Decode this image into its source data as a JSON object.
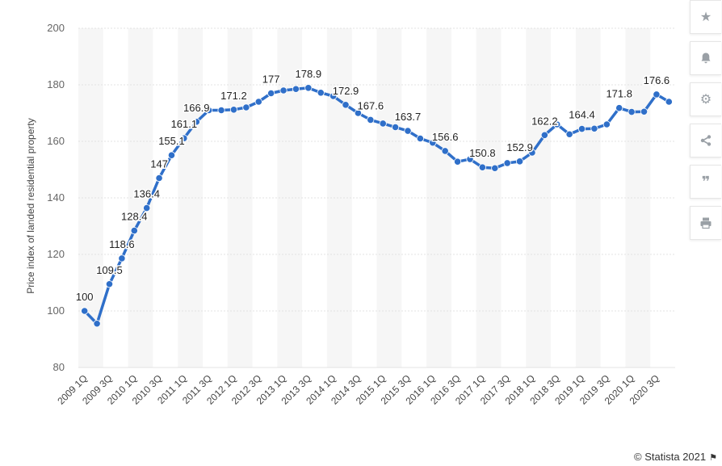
{
  "chart_data": {
    "type": "line",
    "ylabel": "Price index of landed residential property",
    "ylim": [
      80,
      200
    ],
    "yticks": [
      80,
      100,
      120,
      140,
      160,
      180,
      200
    ],
    "x": [
      "2009 1Q",
      "2009 2Q",
      "2009 3Q",
      "2009 4Q",
      "2010 1Q",
      "2010 2Q",
      "2010 3Q",
      "2010 4Q",
      "2011 1Q",
      "2011 2Q",
      "2011 3Q",
      "2011 4Q",
      "2012 1Q",
      "2012 2Q",
      "2012 3Q",
      "2012 4Q",
      "2013 1Q",
      "2013 2Q",
      "2013 3Q",
      "2013 4Q",
      "2014 1Q",
      "2014 2Q",
      "2014 3Q",
      "2014 4Q",
      "2015 1Q",
      "2015 2Q",
      "2015 3Q",
      "2015 4Q",
      "2016 1Q",
      "2016 2Q",
      "2016 3Q",
      "2016 4Q",
      "2017 1Q",
      "2017 2Q",
      "2017 3Q",
      "2017 4Q",
      "2018 1Q",
      "2018 2Q",
      "2018 3Q",
      "2018 4Q",
      "2019 1Q",
      "2019 2Q",
      "2019 3Q",
      "2019 4Q",
      "2020 1Q",
      "2020 2Q",
      "2020 3Q",
      "2020 4Q"
    ],
    "xtick_labels": [
      "2009 1Q",
      "2009 3Q",
      "2010 1Q",
      "2010 3Q",
      "2011 1Q",
      "2011 3Q",
      "2012 1Q",
      "2012 3Q",
      "2013 1Q",
      "2013 3Q",
      "2014 1Q",
      "2014 3Q",
      "2015 1Q",
      "2015 3Q",
      "2016 1Q",
      "2016 3Q",
      "2017 1Q",
      "2017 3Q",
      "2018 1Q",
      "2018 3Q",
      "2019 1Q",
      "2019 3Q",
      "2020 1Q",
      "2020 3Q"
    ],
    "series": [
      {
        "values": [
          100,
          95.5,
          109.5,
          118.6,
          128.4,
          136.4,
          147,
          155.1,
          161.1,
          166.9,
          171,
          171,
          171.2,
          172,
          174,
          177,
          178,
          178.5,
          178.9,
          177.2,
          176,
          172.9,
          170,
          167.6,
          166.3,
          165,
          163.7,
          161,
          159.5,
          156.6,
          152.8,
          153.7,
          150.8,
          150.5,
          152.3,
          152.9,
          156,
          162.2,
          166,
          162.5,
          164.4,
          164.5,
          166,
          171.8,
          170.4,
          170.5,
          176.6,
          174
        ],
        "labels": {
          "0": "100",
          "2": "109.5",
          "3": "118.6",
          "4": "128.4",
          "5": "136.4",
          "6": "147",
          "7": "155.1",
          "8": "161.1",
          "9": "166.9",
          "12": "171.2",
          "15": "177",
          "18": "178.9",
          "21": "172.9",
          "23": "167.6",
          "26": "163.7",
          "29": "156.6",
          "32": "150.8",
          "35": "152.9",
          "37": "162.2",
          "40": "164.4",
          "43": "171.8",
          "46": "176.6"
        }
      }
    ],
    "grid": true,
    "legend": "none",
    "color": "#2f6fc9"
  },
  "credit": "© Statista 2021",
  "toolbar": {
    "icons": [
      "star-icon",
      "bell-icon",
      "gear-icon",
      "share-icon",
      "quote-icon",
      "print-icon"
    ]
  }
}
